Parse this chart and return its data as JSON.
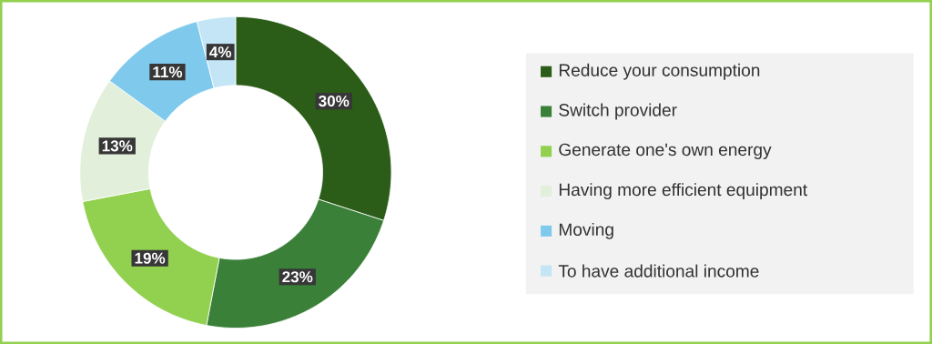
{
  "chart_data": {
    "type": "donut",
    "categories": [
      "Reduce your consumption",
      "Switch provider",
      "Generate one's own energy",
      "Having more efficient equipment",
      "Moving",
      "To have additional income"
    ],
    "values": [
      30,
      23,
      19,
      13,
      11,
      4
    ],
    "colors": [
      "#2b5c18",
      "#3a8038",
      "#92d050",
      "#e2efda",
      "#7fcaec",
      "#c4e5f5"
    ],
    "value_labels": [
      "30%",
      "23%",
      "19%",
      "13%",
      "11%",
      "4%"
    ],
    "legend": "right"
  }
}
